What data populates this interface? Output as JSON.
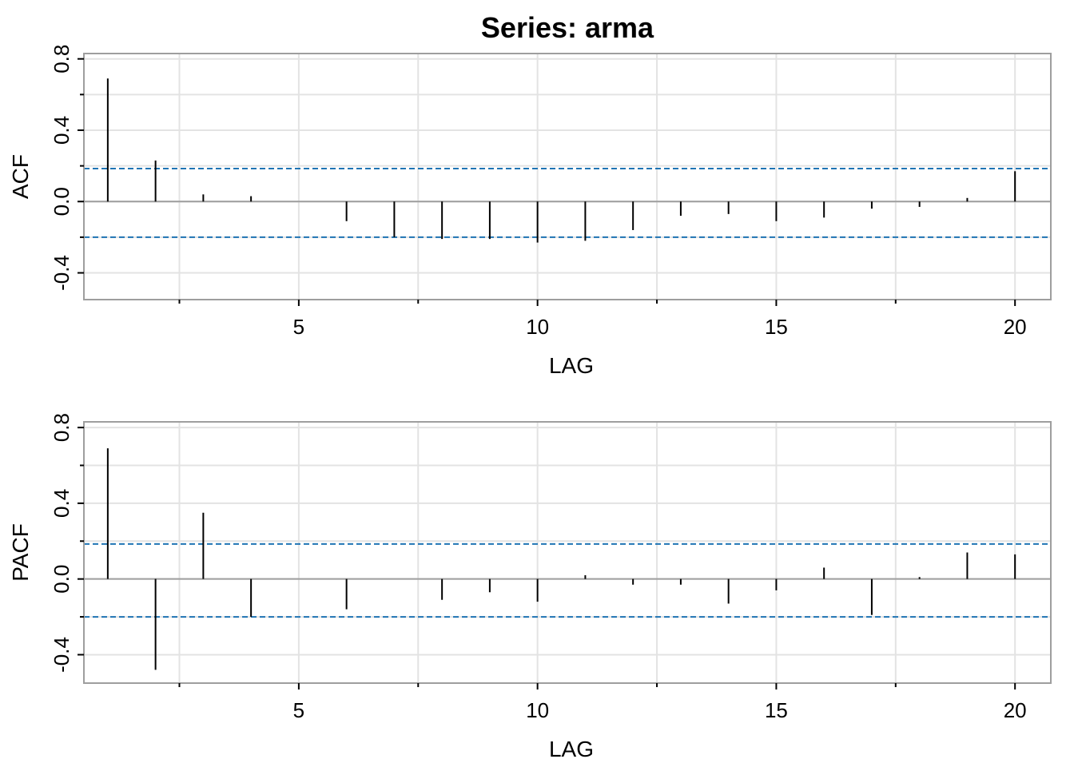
{
  "title": "Series:  arma",
  "colors": {
    "frame": "#9e9e9e",
    "grid": "#e3e3e3",
    "zero_line": "#9e9e9e",
    "bar": "#000000",
    "bound": "#1f74b4"
  },
  "chart_data": [
    {
      "type": "bar",
      "xlabel": "LAG",
      "ylabel": "ACF",
      "xlim": [
        0.5,
        20.75
      ],
      "ylim": [
        -0.55,
        0.83
      ],
      "x_ticks": [
        5,
        10,
        15,
        20
      ],
      "x_tick_labels": [
        "5",
        "10",
        "15",
        "20"
      ],
      "y_ticks": [
        -0.4,
        0.0,
        0.4,
        0.8
      ],
      "y_tick_labels": [
        "-0.4",
        "0.0",
        "0.4",
        "0.8"
      ],
      "grid": true,
      "confidence_bounds": [
        0.185,
        -0.2
      ],
      "lags": [
        1,
        2,
        3,
        4,
        5,
        6,
        7,
        8,
        9,
        10,
        11,
        12,
        13,
        14,
        15,
        16,
        17,
        18,
        19,
        20
      ],
      "values": [
        0.69,
        0.23,
        0.04,
        0.03,
        0.0,
        -0.11,
        -0.2,
        -0.21,
        -0.21,
        -0.23,
        -0.22,
        -0.16,
        -0.08,
        -0.07,
        -0.11,
        -0.09,
        -0.04,
        -0.03,
        0.02,
        0.17
      ]
    },
    {
      "type": "bar",
      "xlabel": "LAG",
      "ylabel": "PACF",
      "xlim": [
        0.5,
        20.75
      ],
      "ylim": [
        -0.55,
        0.83
      ],
      "x_ticks": [
        5,
        10,
        15,
        20
      ],
      "x_tick_labels": [
        "5",
        "10",
        "15",
        "20"
      ],
      "y_ticks": [
        -0.4,
        0.0,
        0.4,
        0.8
      ],
      "y_tick_labels": [
        "-0.4",
        "0.0",
        "0.4",
        "0.8"
      ],
      "grid": true,
      "confidence_bounds": [
        0.185,
        -0.2
      ],
      "lags": [
        1,
        2,
        3,
        4,
        5,
        6,
        7,
        8,
        9,
        10,
        11,
        12,
        13,
        14,
        15,
        16,
        17,
        18,
        19,
        20
      ],
      "values": [
        0.69,
        -0.48,
        0.35,
        -0.2,
        0.0,
        -0.16,
        0.0,
        -0.11,
        -0.07,
        -0.12,
        0.02,
        -0.03,
        -0.03,
        -0.13,
        -0.06,
        0.06,
        -0.19,
        0.01,
        0.14,
        0.13
      ]
    }
  ]
}
